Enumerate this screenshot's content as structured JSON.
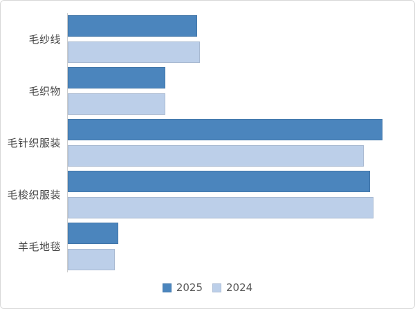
{
  "chart_data": {
    "type": "bar",
    "orientation": "horizontal",
    "title": "",
    "xlabel": "",
    "ylabel": "",
    "categories": [
      "毛纱线",
      "毛织物",
      "毛针织服装",
      "毛梭织服装",
      "羊毛地毯"
    ],
    "series": [
      {
        "name": "2025",
        "color": "#4b85bd",
        "values": [
          41,
          31,
          100,
          96,
          16
        ]
      },
      {
        "name": "2024",
        "color": "#bccfe9",
        "values": [
          42,
          31,
          94,
          97,
          15
        ]
      }
    ],
    "value_axis": {
      "min": 0,
      "max": 110
    },
    "grid": false,
    "legend_position": "bottom"
  },
  "colors": {
    "frame_border": "#d8d8d8",
    "axis_line": "#cccccc",
    "label_text": "#454545",
    "legend_text": "#595959"
  }
}
